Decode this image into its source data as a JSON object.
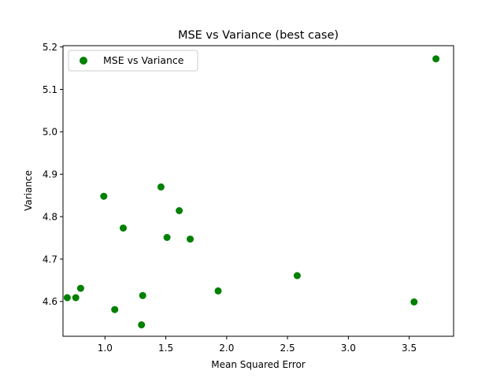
{
  "chart_data": {
    "type": "scatter",
    "title": "MSE vs Variance (best case)",
    "xlabel": "Mean Squared Error",
    "ylabel": "Variance",
    "xlim": [
      0.655,
      3.865
    ],
    "ylim": [
      4.518,
      5.203
    ],
    "xticks": [
      1.0,
      1.5,
      2.0,
      2.5,
      3.0,
      3.5
    ],
    "xtick_labels": [
      "1.0",
      "1.5",
      "2.0",
      "2.5",
      "3.0",
      "3.5"
    ],
    "yticks": [
      4.6,
      4.7,
      4.8,
      4.9,
      5.0,
      5.1,
      5.2
    ],
    "ytick_labels": [
      "4.6",
      "4.7",
      "4.8",
      "4.9",
      "5.0",
      "5.1",
      "5.2"
    ],
    "grid": false,
    "legend": {
      "placement": "top-left",
      "entries": [
        "MSE vs Variance"
      ]
    },
    "series": [
      {
        "name": "MSE vs Variance",
        "color": "#008000",
        "x": [
          0.69,
          0.76,
          0.8,
          0.99,
          1.08,
          1.15,
          1.3,
          1.31,
          1.46,
          1.51,
          1.61,
          1.7,
          1.93,
          2.58,
          3.54,
          3.72
        ],
        "y": [
          4.609,
          4.609,
          4.631,
          4.848,
          4.581,
          4.773,
          4.545,
          4.614,
          4.87,
          4.751,
          4.814,
          4.747,
          4.625,
          4.661,
          4.599,
          5.172
        ]
      }
    ]
  }
}
